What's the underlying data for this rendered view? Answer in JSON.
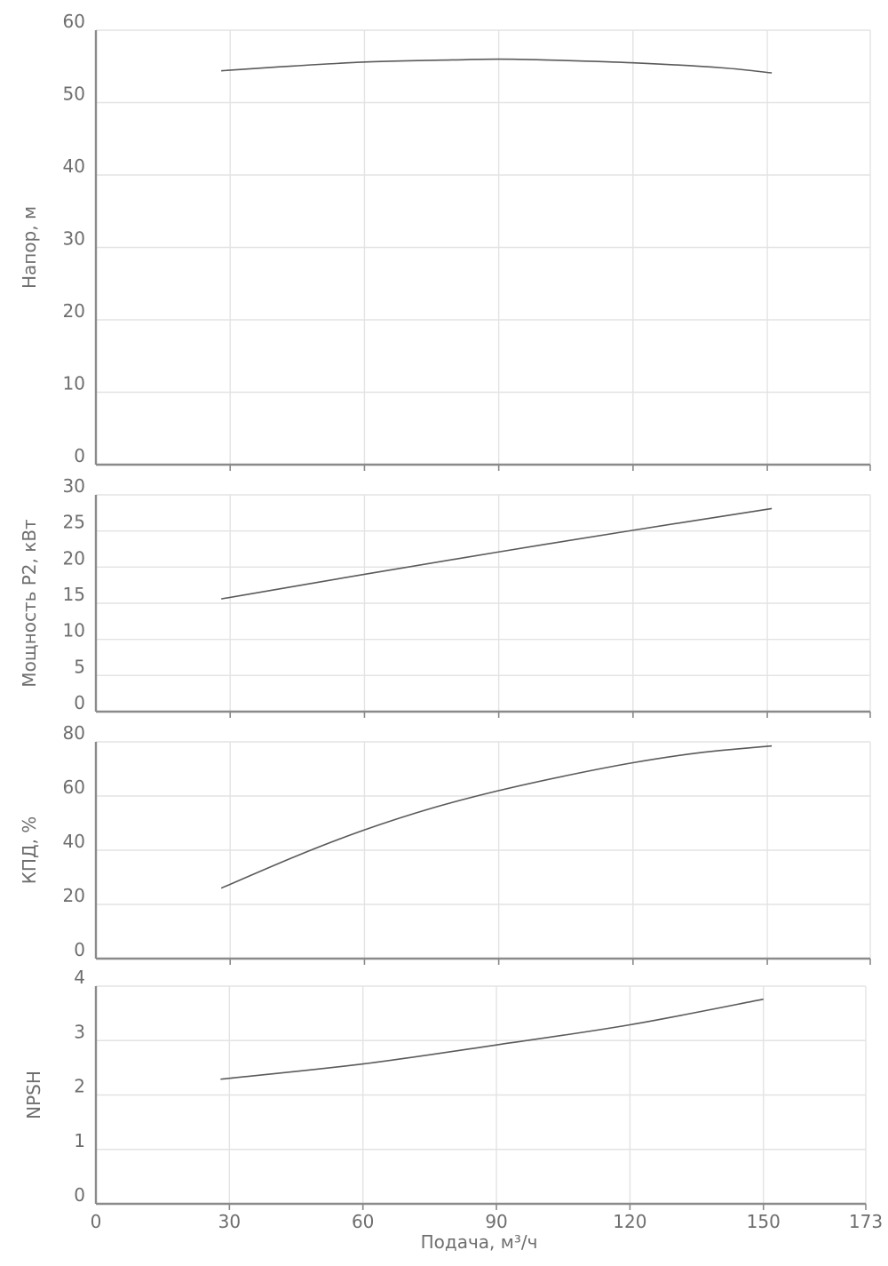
{
  "chart_data": [
    {
      "type": "line",
      "ylabel": "Напор, м",
      "ylim": [
        0,
        60
      ],
      "yticks": [
        "0",
        "10",
        "20",
        "30",
        "40",
        "50",
        "60"
      ],
      "xlim": [
        0,
        173
      ],
      "grid": true,
      "series": [
        {
          "x": [
            28,
            40,
            60,
            80,
            90,
            100,
            120,
            140,
            151
          ],
          "y": [
            54.4,
            54.9,
            55.6,
            55.9,
            56.0,
            55.9,
            55.5,
            54.8,
            54.1
          ]
        }
      ]
    },
    {
      "type": "line",
      "ylabel": "Мощность Р2, кВт",
      "ylim": [
        0,
        30
      ],
      "yticks": [
        "0",
        "5",
        "10",
        "15",
        "20",
        "25",
        "30"
      ],
      "xlim": [
        0,
        173
      ],
      "grid": true,
      "series": [
        {
          "x": [
            28,
            60,
            90,
            120,
            151
          ],
          "y": [
            15.6,
            19.0,
            22.1,
            25.1,
            28.1
          ]
        }
      ]
    },
    {
      "type": "line",
      "ylabel": "КПД, %",
      "ylim": [
        0,
        80
      ],
      "yticks": [
        "0",
        "20",
        "40",
        "60",
        "80"
      ],
      "xlim": [
        0,
        173
      ],
      "grid": true,
      "series": [
        {
          "x": [
            28,
            45,
            60,
            75,
            90,
            105,
            120,
            135,
            151
          ],
          "y": [
            26,
            38,
            47.5,
            55.5,
            62,
            67.5,
            72.3,
            76,
            78.5
          ]
        }
      ]
    },
    {
      "type": "line",
      "ylabel": "NPSH",
      "xlabel": "Подача, м³/ч",
      "ylim": [
        0,
        4
      ],
      "yticks": [
        "0",
        "1",
        "2",
        "3",
        "4"
      ],
      "xlim": [
        0,
        173
      ],
      "xticks": [
        "0",
        "30",
        "60",
        "90",
        "120",
        "150",
        "173"
      ],
      "grid": true,
      "series": [
        {
          "x": [
            28,
            60,
            90,
            120,
            150
          ],
          "y": [
            2.29,
            2.57,
            2.92,
            3.29,
            3.76
          ]
        }
      ]
    }
  ]
}
